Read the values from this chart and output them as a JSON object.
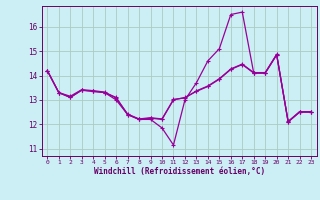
{
  "xlabel": "Windchill (Refroidissement éolien,°C)",
  "background_color": "#cceef5",
  "grid_color": "#aaccc0",
  "line_color": "#990099",
  "xlim_min": -0.5,
  "xlim_max": 23.5,
  "ylim_min": 10.7,
  "ylim_max": 16.85,
  "yticks": [
    11,
    12,
    13,
    14,
    15,
    16
  ],
  "xticks": [
    0,
    1,
    2,
    3,
    4,
    5,
    6,
    7,
    8,
    9,
    10,
    11,
    12,
    13,
    14,
    15,
    16,
    17,
    18,
    19,
    20,
    21,
    22,
    23
  ],
  "line1_y": [
    14.2,
    13.3,
    13.1,
    13.4,
    13.35,
    13.3,
    13.0,
    12.4,
    12.2,
    12.2,
    11.85,
    11.15,
    13.0,
    13.7,
    14.6,
    15.1,
    16.5,
    16.6,
    14.1,
    14.1,
    14.85,
    12.1,
    12.5,
    12.5
  ],
  "line2_y": [
    14.2,
    13.3,
    13.1,
    13.4,
    13.35,
    13.3,
    13.1,
    12.4,
    12.2,
    12.25,
    12.2,
    13.0,
    13.1,
    13.35,
    13.55,
    13.85,
    14.25,
    14.45,
    14.1,
    14.1,
    14.85,
    12.1,
    12.5,
    12.5
  ],
  "line3_y": [
    14.2,
    13.3,
    13.15,
    13.42,
    13.38,
    13.32,
    13.08,
    12.42,
    12.22,
    12.27,
    12.22,
    13.02,
    13.08,
    13.37,
    13.57,
    13.87,
    14.27,
    14.47,
    14.12,
    14.12,
    14.87,
    12.12,
    12.52,
    12.52
  ],
  "tick_color": "#660066",
  "xlabel_fontsize": 5.5,
  "ylabel_fontsize": 5.5,
  "xtick_fontsize": 4.5,
  "ytick_fontsize": 5.5
}
